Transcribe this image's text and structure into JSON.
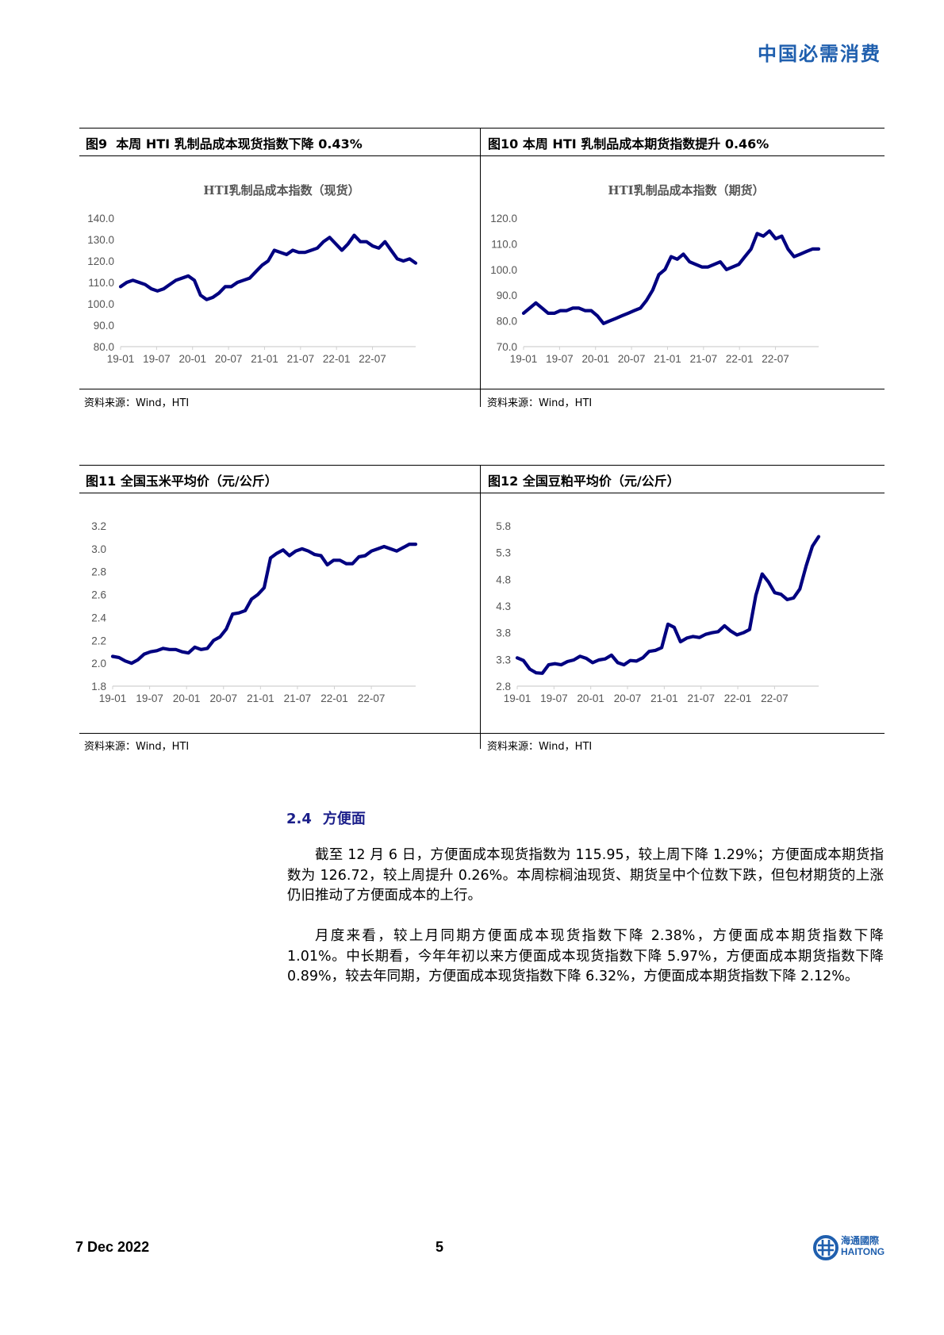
{
  "header": {
    "title": "中国必需消费"
  },
  "figures": [
    {
      "id": "fig9",
      "caption_prefix": "图9",
      "caption": "本周 HTI 乳制品成本现货指数下降 0.43%",
      "chart_title": "HTI乳制品成本指数（现货）",
      "source": "资料来源：Wind，HTI"
    },
    {
      "id": "fig10",
      "caption_prefix": "图10",
      "caption": "本周 HTI 乳制品成本期货指数提升 0.46%",
      "chart_title": "HTI乳制品成本指数（期货）",
      "source": "资料来源：Wind，HTI"
    },
    {
      "id": "fig11",
      "caption_prefix": "图11",
      "caption": "全国玉米平均价（元/公斤）",
      "chart_title": "",
      "source": "资料来源：Wind，HTI"
    },
    {
      "id": "fig12",
      "caption_prefix": "图12",
      "caption": "全国豆粕平均价（元/公斤）",
      "chart_title": "",
      "source": "资料来源：Wind，HTI"
    }
  ],
  "chart_data": [
    {
      "type": "line",
      "title": "HTI乳制品成本指数（现货）",
      "xlabel": "",
      "ylabel": "",
      "x_ticks": [
        "19-01",
        "19-07",
        "20-01",
        "20-07",
        "21-01",
        "21-07",
        "22-01",
        "22-07"
      ],
      "y_ticks": [
        "140.0",
        "130.0",
        "120.0",
        "110.0",
        "100.0",
        "90.0",
        "80.0"
      ],
      "ylim": [
        80,
        140
      ],
      "grid": false,
      "color": "#000080",
      "series": [
        {
          "name": "HTI乳制品成本指数（现货）",
          "x": [
            0,
            1,
            2,
            3,
            4,
            5,
            6,
            7,
            8,
            9,
            10,
            11,
            12,
            13,
            14,
            15,
            16,
            17,
            18,
            19,
            20,
            21,
            22,
            23,
            24,
            25,
            26,
            27,
            28,
            29,
            30,
            31,
            32,
            33,
            34,
            35,
            36,
            37,
            38,
            39,
            40,
            41,
            42,
            43,
            44,
            45,
            46,
            47,
            48
          ],
          "values": [
            108,
            110,
            111,
            110,
            109,
            107,
            106,
            107,
            109,
            111,
            112,
            113,
            111,
            104,
            102,
            103,
            105,
            108,
            108,
            110,
            111,
            112,
            115,
            118,
            120,
            125,
            124,
            123,
            125,
            124,
            124,
            125,
            126,
            129,
            131,
            128,
            125,
            128,
            132,
            129,
            129,
            127,
            126,
            129,
            125,
            121,
            120,
            121,
            119
          ]
        }
      ]
    },
    {
      "type": "line",
      "title": "HTI乳制品成本指数（期货）",
      "xlabel": "",
      "ylabel": "",
      "x_ticks": [
        "19-01",
        "19-07",
        "20-01",
        "20-07",
        "21-01",
        "21-07",
        "22-01",
        "22-07"
      ],
      "y_ticks": [
        "120.0",
        "110.0",
        "100.0",
        "90.0",
        "80.0",
        "70.0"
      ],
      "ylim": [
        70,
        120
      ],
      "grid": false,
      "color": "#000080",
      "series": [
        {
          "name": "HTI乳制品成本指数（期货）",
          "x": [
            0,
            1,
            2,
            3,
            4,
            5,
            6,
            7,
            8,
            9,
            10,
            11,
            12,
            13,
            14,
            15,
            16,
            17,
            18,
            19,
            20,
            21,
            22,
            23,
            24,
            25,
            26,
            27,
            28,
            29,
            30,
            31,
            32,
            33,
            34,
            35,
            36,
            37,
            38,
            39,
            40,
            41,
            42,
            43,
            44,
            45,
            46,
            47,
            48
          ],
          "values": [
            83,
            85,
            87,
            85,
            83,
            83,
            84,
            84,
            85,
            85,
            84,
            84,
            82,
            79,
            80,
            81,
            82,
            83,
            84,
            85,
            88,
            92,
            98,
            100,
            105,
            104,
            106,
            103,
            102,
            101,
            101,
            102,
            103,
            100,
            101,
            102,
            105,
            108,
            114,
            113,
            115,
            112,
            113,
            108,
            105,
            106,
            107,
            108,
            108
          ]
        }
      ]
    },
    {
      "type": "line",
      "title": "全国玉米平均价（元/公斤）",
      "xlabel": "",
      "ylabel": "",
      "x_ticks": [
        "19-01",
        "19-07",
        "20-01",
        "20-07",
        "21-01",
        "21-07",
        "22-01",
        "22-07"
      ],
      "y_ticks": [
        "3.2",
        "3.0",
        "2.8",
        "2.6",
        "2.4",
        "2.2",
        "2.0",
        "1.8"
      ],
      "ylim": [
        1.8,
        3.2
      ],
      "grid": false,
      "color": "#000080",
      "series": [
        {
          "name": "全国玉米平均价",
          "x": [
            0,
            1,
            2,
            3,
            4,
            5,
            6,
            7,
            8,
            9,
            10,
            11,
            12,
            13,
            14,
            15,
            16,
            17,
            18,
            19,
            20,
            21,
            22,
            23,
            24,
            25,
            26,
            27,
            28,
            29,
            30,
            31,
            32,
            33,
            34,
            35,
            36,
            37,
            38,
            39,
            40,
            41,
            42,
            43,
            44,
            45,
            46,
            47,
            48
          ],
          "values": [
            2.06,
            2.05,
            2.02,
            2.0,
            2.03,
            2.08,
            2.1,
            2.11,
            2.13,
            2.12,
            2.12,
            2.1,
            2.09,
            2.14,
            2.12,
            2.13,
            2.2,
            2.23,
            2.3,
            2.43,
            2.44,
            2.46,
            2.56,
            2.6,
            2.66,
            2.92,
            2.96,
            2.99,
            2.94,
            2.98,
            3.0,
            2.98,
            2.95,
            2.94,
            2.86,
            2.9,
            2.9,
            2.87,
            2.87,
            2.93,
            2.94,
            2.98,
            3.0,
            3.02,
            3.0,
            2.98,
            3.01,
            3.04,
            3.04
          ]
        }
      ]
    },
    {
      "type": "line",
      "title": "全国豆粕平均价（元/公斤）",
      "xlabel": "",
      "ylabel": "",
      "x_ticks": [
        "19-01",
        "19-07",
        "20-01",
        "20-07",
        "21-01",
        "21-07",
        "22-01",
        "22-07"
      ],
      "y_ticks": [
        "5.8",
        "5.3",
        "4.8",
        "4.3",
        "3.8",
        "3.3",
        "2.8"
      ],
      "ylim": [
        2.8,
        5.8
      ],
      "grid": false,
      "color": "#000080",
      "series": [
        {
          "name": "全国豆粕平均价",
          "x": [
            0,
            1,
            2,
            3,
            4,
            5,
            6,
            7,
            8,
            9,
            10,
            11,
            12,
            13,
            14,
            15,
            16,
            17,
            18,
            19,
            20,
            21,
            22,
            23,
            24,
            25,
            26,
            27,
            28,
            29,
            30,
            31,
            32,
            33,
            34,
            35,
            36,
            37,
            38,
            39,
            40,
            41,
            42,
            43,
            44,
            45,
            46,
            47,
            48
          ],
          "values": [
            3.33,
            3.28,
            3.12,
            3.05,
            3.04,
            3.2,
            3.22,
            3.2,
            3.26,
            3.29,
            3.36,
            3.32,
            3.24,
            3.29,
            3.31,
            3.38,
            3.24,
            3.2,
            3.28,
            3.27,
            3.33,
            3.45,
            3.47,
            3.52,
            3.96,
            3.9,
            3.63,
            3.7,
            3.73,
            3.71,
            3.77,
            3.8,
            3.82,
            3.93,
            3.83,
            3.76,
            3.8,
            3.86,
            4.5,
            4.9,
            4.75,
            4.55,
            4.52,
            4.42,
            4.45,
            4.62,
            5.05,
            5.42,
            5.6
          ]
        }
      ]
    }
  ],
  "section": {
    "number": "2.4",
    "title": "方便面",
    "paragraphs": [
      "截至 12 月 6 日，方便面成本现货指数为 115.95，较上周下降 1.29%；方便面成本期货指数为 126.72，较上周提升 0.26%。本周棕榈油现货、期货呈中个位数下跌，但包材期货的上涨仍旧推动了方便面成本的上行。",
      "月度来看，较上月同期方便面成本现货指数下降 2.38%，方便面成本期货指数下降 1.01%。中长期看，今年年初以来方便面成本现货指数下降 5.97%，方便面成本期货指数下降 0.89%，较去年同期，方便面成本现货指数下降 6.32%，方便面成本期货指数下降 2.12%。"
    ]
  },
  "footer": {
    "date": "7 Dec 2022",
    "page": "5",
    "logo_cn": "海通國際",
    "logo_en": "HAITONG"
  },
  "colors": {
    "brand_blue": "#1f5fae",
    "line": "#000080",
    "section_heading": "#1b1f8a"
  }
}
